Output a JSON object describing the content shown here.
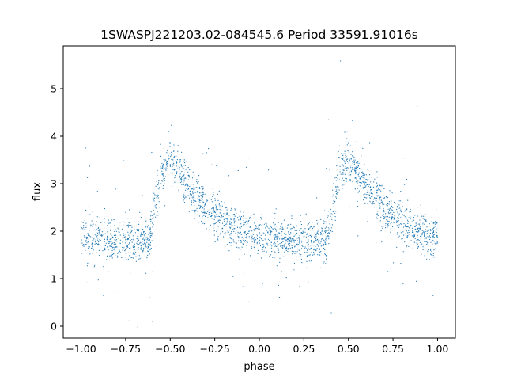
{
  "chart_data": {
    "type": "scatter",
    "title": "1SWASPJ221203.02-084545.6 Period 33591.91016s",
    "xlabel": "phase",
    "ylabel": "flux",
    "xlim": [
      -1.1,
      1.1
    ],
    "ylim": [
      -0.25,
      5.9
    ],
    "xticks": [
      -1.0,
      -0.75,
      -0.5,
      -0.25,
      0.0,
      0.25,
      0.5,
      0.75,
      1.0
    ],
    "xtick_labels": [
      "−1.00",
      "−0.75",
      "−0.50",
      "−0.25",
      "0.00",
      "0.25",
      "0.50",
      "0.75",
      "1.00"
    ],
    "yticks": [
      0,
      1,
      2,
      3,
      4,
      5
    ],
    "ytick_labels": [
      "0",
      "1",
      "2",
      "3",
      "4",
      "5"
    ],
    "grid": false,
    "legend": "none",
    "point_color": "#1f77b4",
    "series": [
      {
        "x": [
          -1.0,
          -0.9,
          -0.8,
          -0.7,
          -0.62,
          -0.58,
          -0.55,
          -0.5,
          -0.45,
          -0.4,
          -0.35,
          -0.3,
          -0.25,
          -0.2,
          -0.15,
          -0.1,
          -0.05,
          0.0,
          0.1,
          0.2,
          0.3,
          0.38,
          0.42,
          0.45,
          0.5,
          0.55,
          0.6,
          0.65,
          0.7,
          0.75,
          0.8,
          0.85,
          0.9,
          0.95,
          1.0
        ],
        "y": [
          1.9,
          1.85,
          1.8,
          1.78,
          1.85,
          2.6,
          3.3,
          3.5,
          3.25,
          2.95,
          2.7,
          2.5,
          2.35,
          2.2,
          2.08,
          2.0,
          1.92,
          1.88,
          1.85,
          1.8,
          1.78,
          1.85,
          2.6,
          3.3,
          3.5,
          3.25,
          2.95,
          2.7,
          2.5,
          2.35,
          2.2,
          2.08,
          2.0,
          1.92,
          1.88
        ]
      }
    ]
  }
}
